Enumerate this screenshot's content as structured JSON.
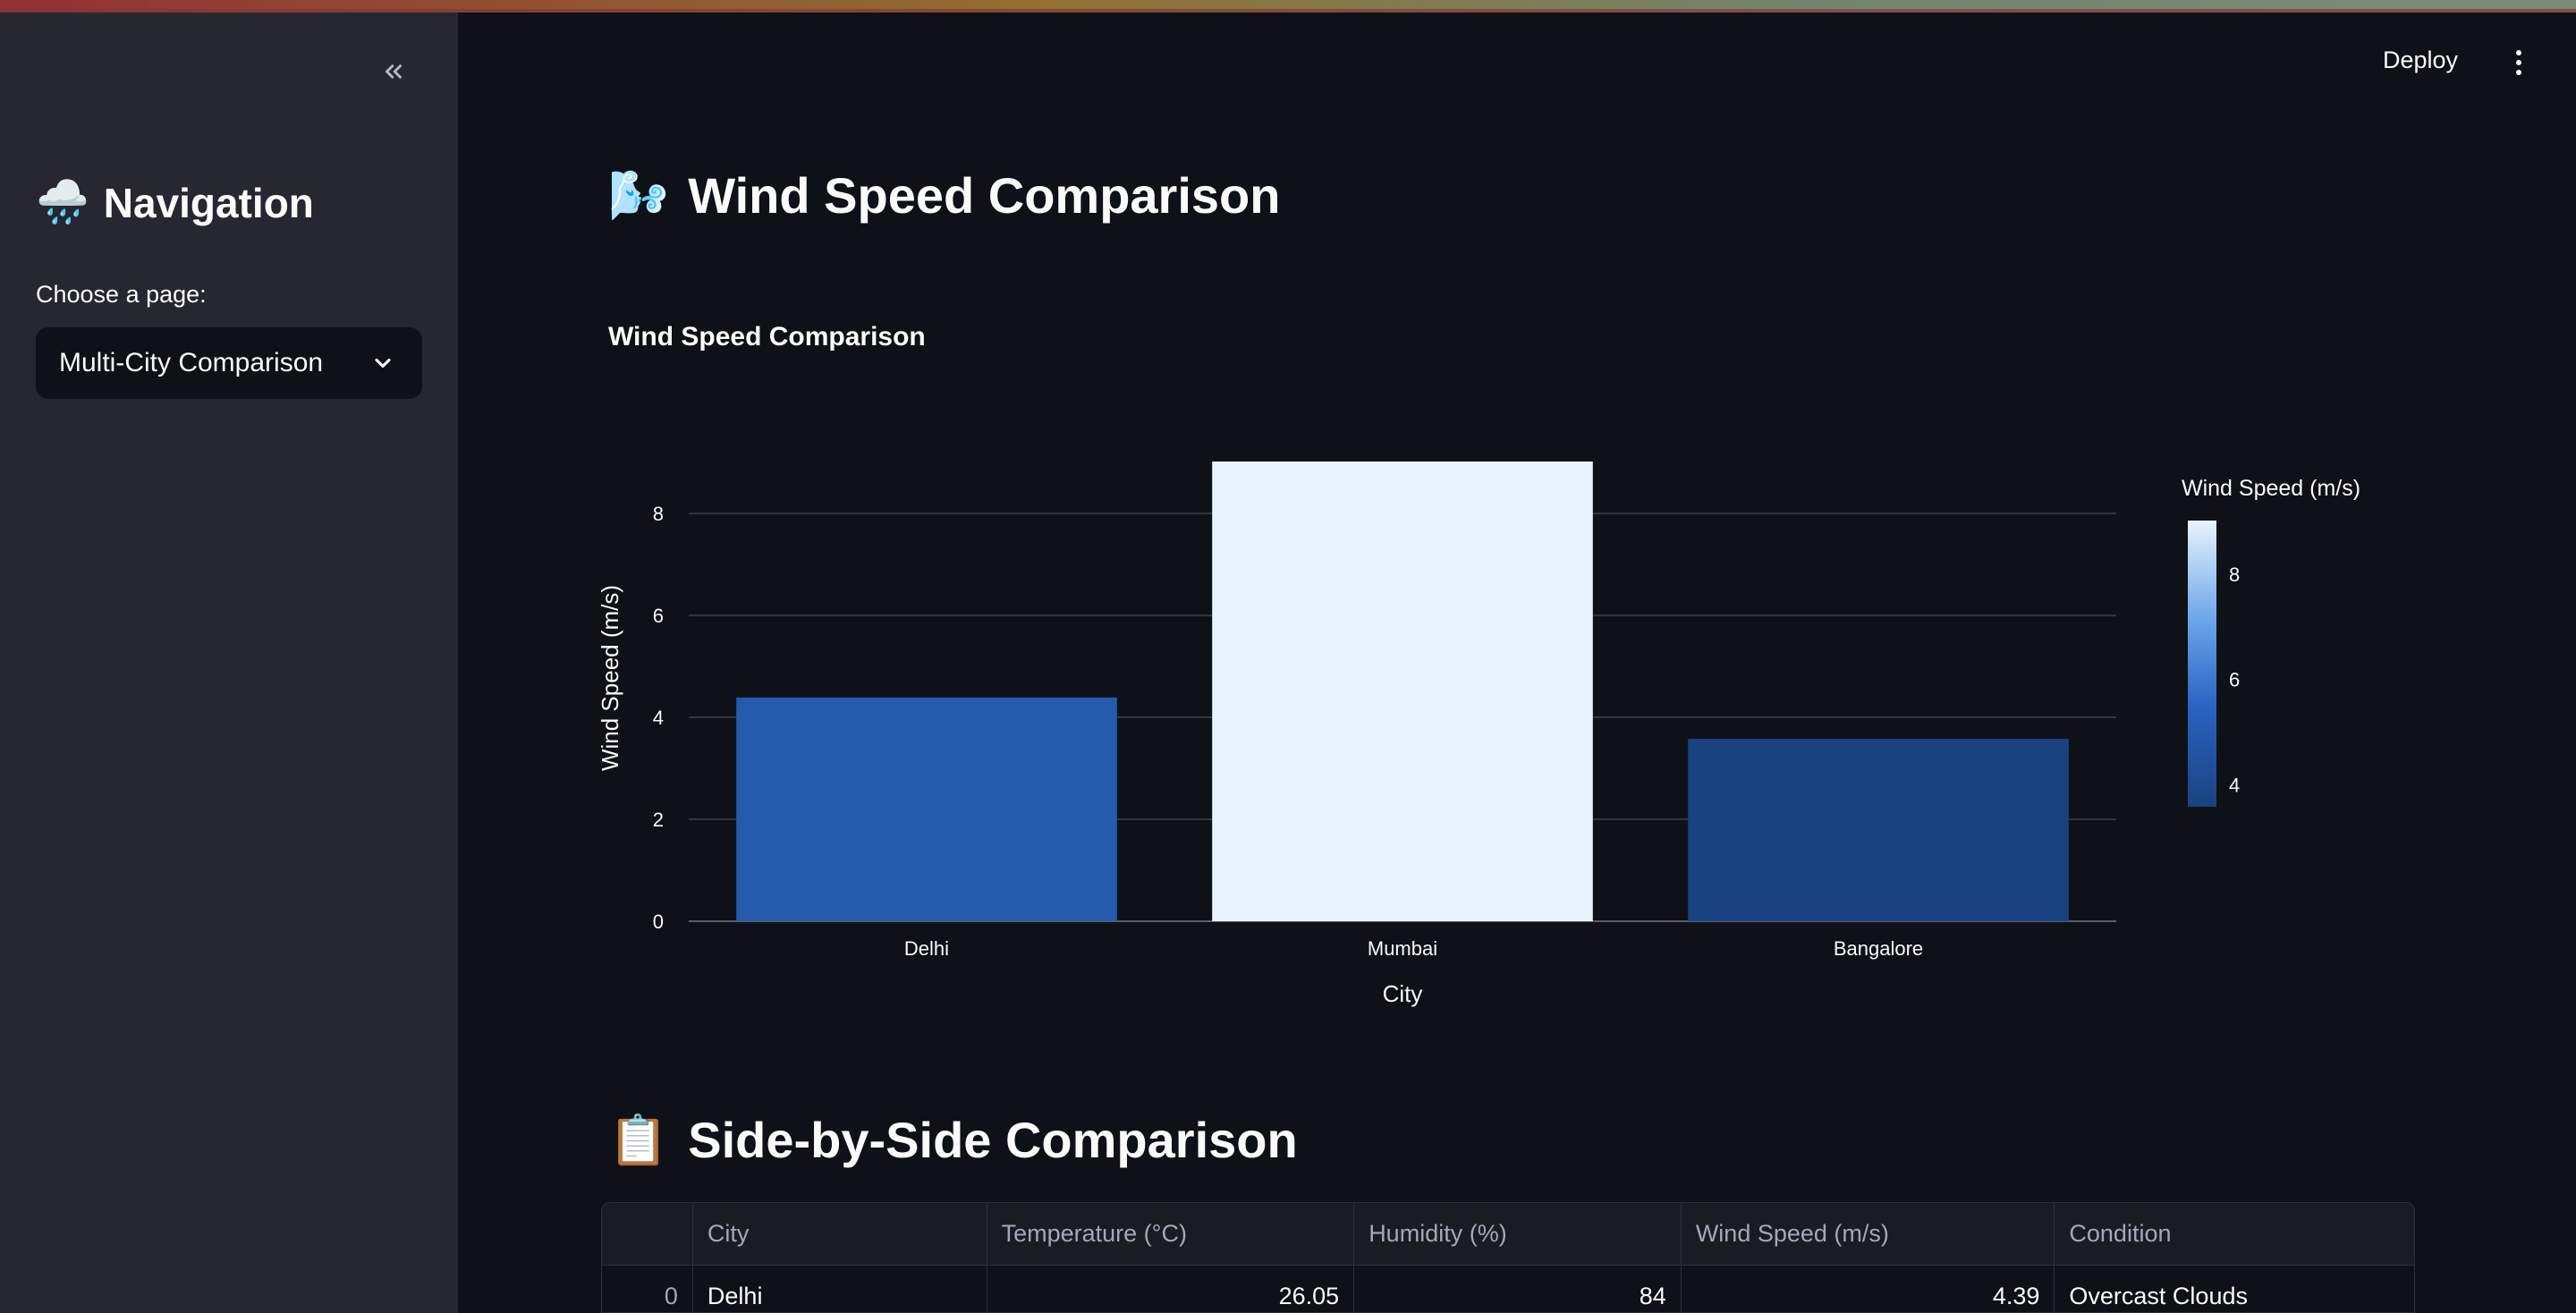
{
  "sidebar": {
    "collapse_icon": "double-chevron-left-icon",
    "nav_emoji": "🌧️",
    "nav_title": "Navigation",
    "choose_label": "Choose a page:",
    "selected_page": "Multi-City Comparison"
  },
  "header": {
    "deploy_label": "Deploy",
    "menu_icon": "kebab-menu-icon"
  },
  "main": {
    "title_emoji": "🌬️",
    "title": "Wind Speed Comparison",
    "section_emoji": "📋",
    "section_title": "Side-by-Side Comparison"
  },
  "chart_data": {
    "type": "bar",
    "title": "Wind Speed Comparison",
    "categories": [
      "Delhi",
      "Mumbai",
      "Bangalore"
    ],
    "values": [
      4.39,
      9.02,
      3.58
    ],
    "xlabel": "City",
    "ylabel": "Wind Speed (m/s)",
    "ylim": [
      0,
      9.02
    ],
    "yticks": [
      0,
      2,
      4,
      6,
      8
    ],
    "grid": true,
    "colorbar": {
      "title": "Wind Speed (m/s)",
      "ticks": [
        4,
        6,
        8
      ],
      "range": [
        3.58,
        9.02
      ],
      "colors": [
        "#1a4280",
        "#2a63c2",
        "#6aa5ea",
        "#e9f3fd"
      ]
    },
    "bar_colors": [
      "#245bad",
      "#e9f3fd",
      "#1a4280"
    ]
  },
  "table": {
    "columns": [
      "",
      "City",
      "Temperature (°C)",
      "Humidity (%)",
      "Wind Speed (m/s)",
      "Condition"
    ],
    "rows": [
      [
        "0",
        "Delhi",
        "26.05",
        "84",
        "4.39",
        "Overcast Clouds"
      ]
    ]
  }
}
